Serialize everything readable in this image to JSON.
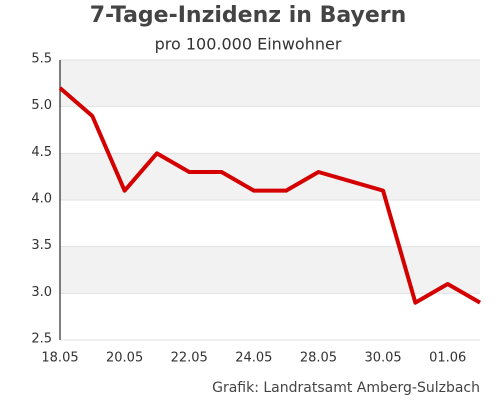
{
  "chart_data": {
    "type": "line",
    "title": "7-Tage-Inzidenz in Bayern",
    "subtitle": "pro 100.000 Einwohner",
    "source": "Grafik: Landratsamt Amberg-Sulzbach",
    "categories": [
      "18.05",
      null,
      "20.05",
      null,
      "22.05",
      null,
      "24.05",
      null,
      "28.05",
      null,
      "30.05",
      null,
      "01.06",
      null
    ],
    "series": [
      {
        "name": "7-Tage-Inzidenz",
        "color": "#d40000",
        "values": [
          5.2,
          4.9,
          4.1,
          4.5,
          4.3,
          4.3,
          4.1,
          4.1,
          4.3,
          4.2,
          4.1,
          2.9,
          3.1,
          2.9
        ]
      }
    ],
    "ylim": [
      2.5,
      5.5
    ],
    "yticks": [
      2.5,
      {
        "value": 3,
        "label": "3.0"
      },
      3.5,
      {
        "value": 4,
        "label": "4.0"
      },
      4.5,
      {
        "value": 5,
        "label": "5.0"
      },
      5.5
    ],
    "grid": true
  }
}
